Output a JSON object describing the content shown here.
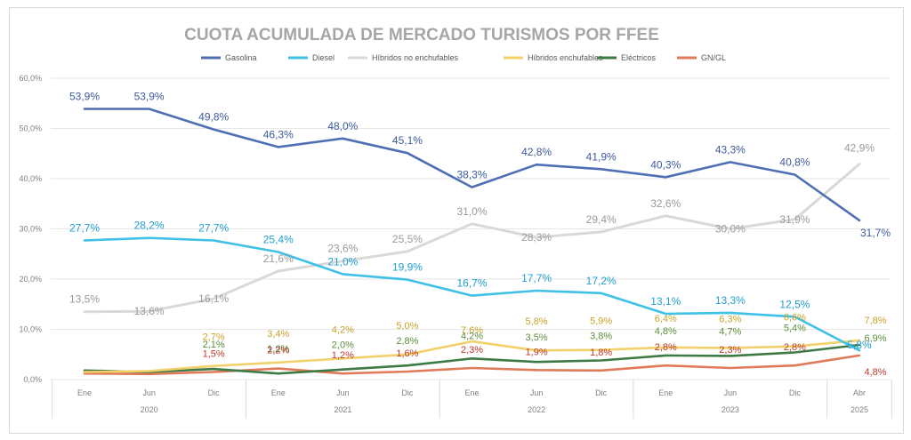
{
  "chart_data": {
    "type": "line",
    "title": "CUOTA ACUMULADA DE MERCADO TURISMOS POR FFEE",
    "xlabel": "",
    "ylabel": "",
    "ylim": [
      0,
      60
    ],
    "yticks": [
      "0,0%",
      "10,0%",
      "20,0%",
      "30,0%",
      "40,0%",
      "50,0%",
      "60,0%"
    ],
    "grid": true,
    "legend_position": "top",
    "categories": [
      "Ene",
      "Jun",
      "Dic",
      "Ene",
      "Jun",
      "Dic",
      "Ene",
      "Jun",
      "Dic",
      "Ene",
      "Jun",
      "Dic",
      "Abr"
    ],
    "years": [
      {
        "label": "2020",
        "from": 0,
        "to": 2
      },
      {
        "label": "2021",
        "from": 3,
        "to": 5
      },
      {
        "label": "2022",
        "from": 6,
        "to": 8
      },
      {
        "label": "2023",
        "from": 9,
        "to": 11
      },
      {
        "label": "2025",
        "from": 12,
        "to": 12
      }
    ],
    "series": [
      {
        "name": "Gasolina",
        "color": "#4f6fb5",
        "label_color": "#3d5a9c",
        "values": [
          53.9,
          53.9,
          49.8,
          46.3,
          48.0,
          45.1,
          38.3,
          42.8,
          41.9,
          40.3,
          43.3,
          40.8,
          31.7
        ],
        "labels": [
          "53,9%",
          "53,9%",
          "49,8%",
          "46,3%",
          "48,0%",
          "45,1%",
          "38,3%",
          "42,8%",
          "41,9%",
          "40,3%",
          "43,3%",
          "40,8%",
          "31,7%"
        ]
      },
      {
        "name": "Diesel",
        "color": "#3fc1e6",
        "label_color": "#1f9fd0",
        "values": [
          27.7,
          28.2,
          27.7,
          25.4,
          21.0,
          19.9,
          16.7,
          17.7,
          17.2,
          13.1,
          13.3,
          12.5,
          5.8
        ],
        "labels": [
          "27,7%",
          "28,2%",
          "27,7%",
          "25,4%",
          "21,0%",
          "19,9%",
          "16,7%",
          "17,7%",
          "17,2%",
          "13,1%",
          "13,3%",
          "12,5%",
          "5,8%"
        ]
      },
      {
        "name": "Híbridos no enchufables",
        "color": "#d9d9d9",
        "label_color": "#9a9a9a",
        "values": [
          13.5,
          13.6,
          16.1,
          21.6,
          23.6,
          25.5,
          31.0,
          28.3,
          29.4,
          32.6,
          30.0,
          31.9,
          42.9
        ],
        "labels": [
          "13,5%",
          "13,6%",
          "16,1%",
          "21,6%",
          "23,6%",
          "25,5%",
          "31,0%",
          "28,3%",
          "29,4%",
          "32,6%",
          "30,0%",
          "31,9%",
          "42,9%"
        ]
      },
      {
        "name": "Híbridos enchufables",
        "color": "#f2d16b",
        "label_color": "#c9a227",
        "values": [
          1.5,
          1.7,
          2.7,
          3.4,
          4.2,
          5.0,
          7.6,
          5.8,
          5.9,
          6.4,
          6.3,
          6.6,
          7.8
        ],
        "labels": [
          "",
          "",
          "2,7%",
          "3,4%",
          "4,2%",
          "5,0%",
          "7,6%",
          "5,8%",
          "5,9%",
          "6,4%",
          "6,3%",
          "6,6%",
          "7,8%"
        ]
      },
      {
        "name": "Eléctricos",
        "color": "#3e7a45",
        "label_color": "#5a8f3a",
        "values": [
          1.8,
          1.5,
          2.1,
          1.2,
          2.0,
          2.8,
          4.2,
          3.5,
          3.8,
          4.8,
          4.7,
          5.4,
          6.9
        ],
        "labels": [
          "",
          "",
          "2,1%",
          "1,2%",
          "2,0%",
          "2,8%",
          "4,2%",
          "3,5%",
          "3,8%",
          "4,8%",
          "4,7%",
          "5,4%",
          "6,9%"
        ]
      },
      {
        "name": "GN/GL",
        "color": "#e07b5a",
        "label_color": "#c0392b",
        "values": [
          1.2,
          1.1,
          1.5,
          2.2,
          1.2,
          1.6,
          2.3,
          1.9,
          1.8,
          2.8,
          2.3,
          2.8,
          4.8
        ],
        "labels": [
          "",
          "",
          "1,5%",
          "2,2%",
          "1,2%",
          "1,6%",
          "2,3%",
          "1,9%",
          "1,8%",
          "2,8%",
          "2,3%",
          "2,8%",
          "4,8%"
        ]
      }
    ]
  }
}
